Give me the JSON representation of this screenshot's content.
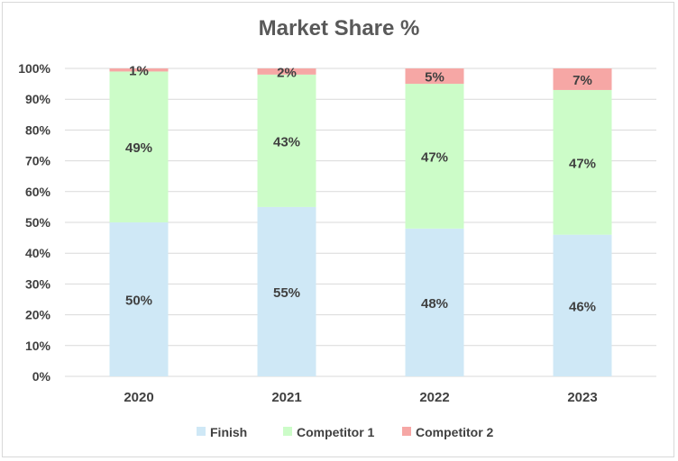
{
  "chart_data": {
    "type": "bar",
    "stacked": true,
    "title": "Market Share %",
    "xlabel": "",
    "ylabel": "",
    "categories": [
      "2020",
      "2021",
      "2022",
      "2023"
    ],
    "ylim": [
      0,
      100
    ],
    "yticks": [
      "0%",
      "10%",
      "20%",
      "30%",
      "40%",
      "50%",
      "60%",
      "70%",
      "80%",
      "90%",
      "100%"
    ],
    "series": [
      {
        "name": "Finish",
        "values": [
          50,
          55,
          48,
          46
        ],
        "labels": [
          "50%",
          "55%",
          "48%",
          "46%"
        ],
        "color": "#cfe8f6"
      },
      {
        "name": "Competitor 1",
        "values": [
          49,
          43,
          47,
          47
        ],
        "labels": [
          "49%",
          "43%",
          "47%",
          "47%"
        ],
        "color": "#ccfcc8"
      },
      {
        "name": "Competitor 2",
        "values": [
          1,
          2,
          5,
          7
        ],
        "labels": [
          "1%",
          "2%",
          "5%",
          "7%"
        ],
        "color": "#f6a7a5"
      }
    ],
    "grid": true,
    "legend_position": "bottom"
  }
}
